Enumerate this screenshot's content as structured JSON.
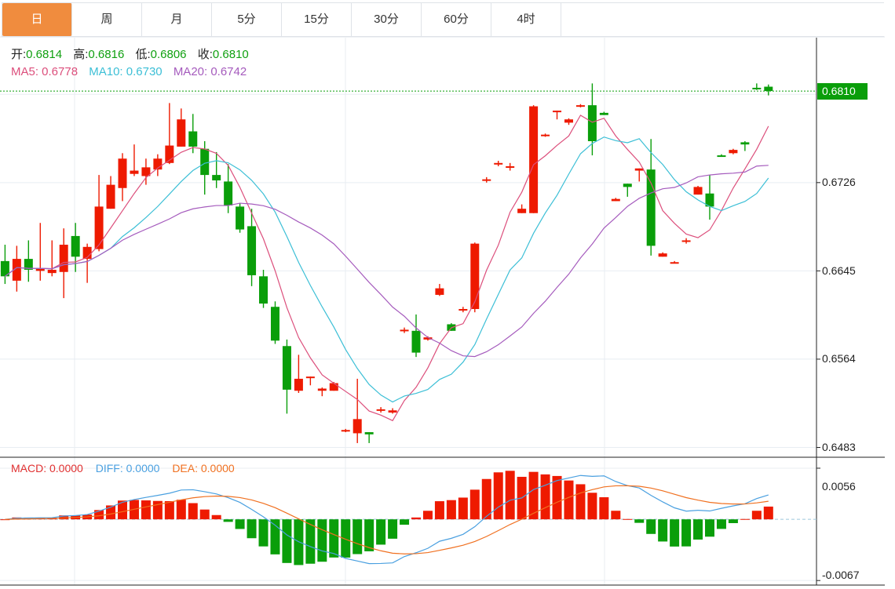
{
  "tabs": [
    "日",
    "周",
    "月",
    "5分",
    "15分",
    "30分",
    "60分",
    "4时"
  ],
  "active_tab": "日",
  "ohlc_info": {
    "open_label": "开:",
    "open": "0.6814",
    "high_label": "高:",
    "high": "0.6816",
    "low_label": "低:",
    "low": "0.6806",
    "close_label": "收:",
    "close": "0.6810"
  },
  "ma_info": {
    "ma5": "MA5: 0.6778",
    "ma10": "MA10: 0.6730",
    "ma20": "MA20: 0.6742"
  },
  "macd_info": {
    "macd": "MACD: 0.0000",
    "diff": "DIFF: 0.0000",
    "dea": "DEA: 0.0000"
  },
  "last_price_tag": "0.6810",
  "colors": {
    "up": "#ee1a00",
    "down": "#0a9e0a",
    "ma5": "#dc4f7c",
    "ma10": "#3cbfd6",
    "ma20": "#a55bbd",
    "diff": "#4aa0e0",
    "dea": "#f07020",
    "accent": "#f08c3e"
  },
  "chart_data": {
    "type": "candlestick",
    "price_axis_ticks": [
      "0.6726",
      "0.6645",
      "0.6564",
      "0.6483"
    ],
    "macd_axis_ticks": [
      "0.0056",
      "-0.0067"
    ],
    "ylim": [
      0.6474,
      0.6859
    ],
    "macd_ylim": [
      -0.0072,
      0.0068
    ],
    "grid": true,
    "ohlc": [
      [
        0.6654,
        0.6669,
        0.6633,
        0.664
      ],
      [
        0.6636,
        0.6668,
        0.6626,
        0.6656
      ],
      [
        0.6656,
        0.6673,
        0.6635,
        0.6646
      ],
      [
        0.6645,
        0.6689,
        0.6636,
        0.6647
      ],
      [
        0.6643,
        0.6673,
        0.664,
        0.6646
      ],
      [
        0.6644,
        0.6684,
        0.662,
        0.6669
      ],
      [
        0.6677,
        0.6689,
        0.6644,
        0.6658
      ],
      [
        0.6656,
        0.667,
        0.6634,
        0.6667
      ],
      [
        0.6665,
        0.6733,
        0.6663,
        0.6704
      ],
      [
        0.6702,
        0.6732,
        0.6702,
        0.6724
      ],
      [
        0.6721,
        0.6753,
        0.6709,
        0.6748
      ],
      [
        0.6734,
        0.6761,
        0.6732,
        0.6737
      ],
      [
        0.6732,
        0.6748,
        0.6724,
        0.674
      ],
      [
        0.6738,
        0.6752,
        0.6732,
        0.6748
      ],
      [
        0.6744,
        0.6799,
        0.6743,
        0.676
      ],
      [
        0.6759,
        0.6794,
        0.6759,
        0.6784
      ],
      [
        0.6773,
        0.6789,
        0.6753,
        0.6759
      ],
      [
        0.6757,
        0.6764,
        0.6715,
        0.6733
      ],
      [
        0.6733,
        0.6754,
        0.6721,
        0.6728
      ],
      [
        0.6727,
        0.6743,
        0.6698,
        0.6705
      ],
      [
        0.6704,
        0.6707,
        0.668,
        0.6683
      ],
      [
        0.6686,
        0.6702,
        0.6631,
        0.6641
      ],
      [
        0.664,
        0.6646,
        0.6611,
        0.6615
      ],
      [
        0.6612,
        0.6617,
        0.6578,
        0.6581
      ],
      [
        0.6576,
        0.6582,
        0.6514,
        0.6536
      ],
      [
        0.6535,
        0.6568,
        0.6533,
        0.6546
      ],
      [
        0.6547,
        0.6548,
        0.654,
        0.6548
      ],
      [
        0.6535,
        0.6538,
        0.653,
        0.6537
      ],
      [
        0.6535,
        0.6543,
        0.6535,
        0.6542
      ],
      [
        0.6498,
        0.65,
        0.6497,
        0.6499
      ],
      [
        0.6496,
        0.6546,
        0.6487,
        0.6509
      ],
      [
        0.6497,
        0.6497,
        0.6487,
        0.6495
      ],
      [
        0.6517,
        0.652,
        0.6515,
        0.6518
      ],
      [
        0.6515,
        0.6519,
        0.6514,
        0.6517
      ],
      [
        0.659,
        0.6593,
        0.6588,
        0.6591
      ],
      [
        0.659,
        0.6605,
        0.6566,
        0.657
      ],
      [
        0.6582,
        0.6585,
        0.6581,
        0.6584
      ],
      [
        0.6623,
        0.6633,
        0.6622,
        0.6629
      ],
      [
        0.6596,
        0.6597,
        0.659,
        0.659
      ],
      [
        0.6609,
        0.6612,
        0.6607,
        0.661
      ],
      [
        0.661,
        0.6671,
        0.6607,
        0.667
      ],
      [
        0.6728,
        0.6731,
        0.6726,
        0.6729
      ],
      [
        0.6743,
        0.6746,
        0.6741,
        0.6744
      ],
      [
        0.674,
        0.6744,
        0.6737,
        0.6741
      ],
      [
        0.6698,
        0.6706,
        0.6698,
        0.6702
      ],
      [
        0.6698,
        0.6797,
        0.6698,
        0.6796
      ],
      [
        0.6769,
        0.6771,
        0.6768,
        0.677
      ],
      [
        0.6791,
        0.6792,
        0.6784,
        0.6792
      ],
      [
        0.6781,
        0.6785,
        0.6779,
        0.6784
      ],
      [
        0.6796,
        0.6798,
        0.6795,
        0.6797
      ],
      [
        0.6797,
        0.6817,
        0.6751,
        0.6764
      ],
      [
        0.679,
        0.6791,
        0.6788,
        0.6788
      ],
      [
        0.6709,
        0.6712,
        0.6709,
        0.6711
      ],
      [
        0.6725,
        0.6725,
        0.6713,
        0.6722
      ],
      [
        0.6737,
        0.6739,
        0.6727,
        0.6739
      ],
      [
        0.6738,
        0.6766,
        0.6659,
        0.6668
      ],
      [
        0.6658,
        0.6662,
        0.6658,
        0.6661
      ],
      [
        0.6652,
        0.6654,
        0.6652,
        0.6653
      ],
      [
        0.6672,
        0.6675,
        0.667,
        0.6673
      ],
      [
        0.6715,
        0.6723,
        0.6715,
        0.6722
      ],
      [
        0.6716,
        0.6733,
        0.6692,
        0.6704
      ],
      [
        0.6751,
        0.6752,
        0.675,
        0.675
      ],
      [
        0.6753,
        0.6757,
        0.6752,
        0.6756
      ],
      [
        0.6763,
        0.6764,
        0.6755,
        0.6761
      ],
      [
        0.6813,
        0.6817,
        0.6811,
        0.6812
      ],
      [
        0.6814,
        0.6816,
        0.6806,
        0.681
      ]
    ],
    "moving_averages": [
      5,
      10,
      20
    ],
    "indicator": "MACD(12,26,9)"
  }
}
